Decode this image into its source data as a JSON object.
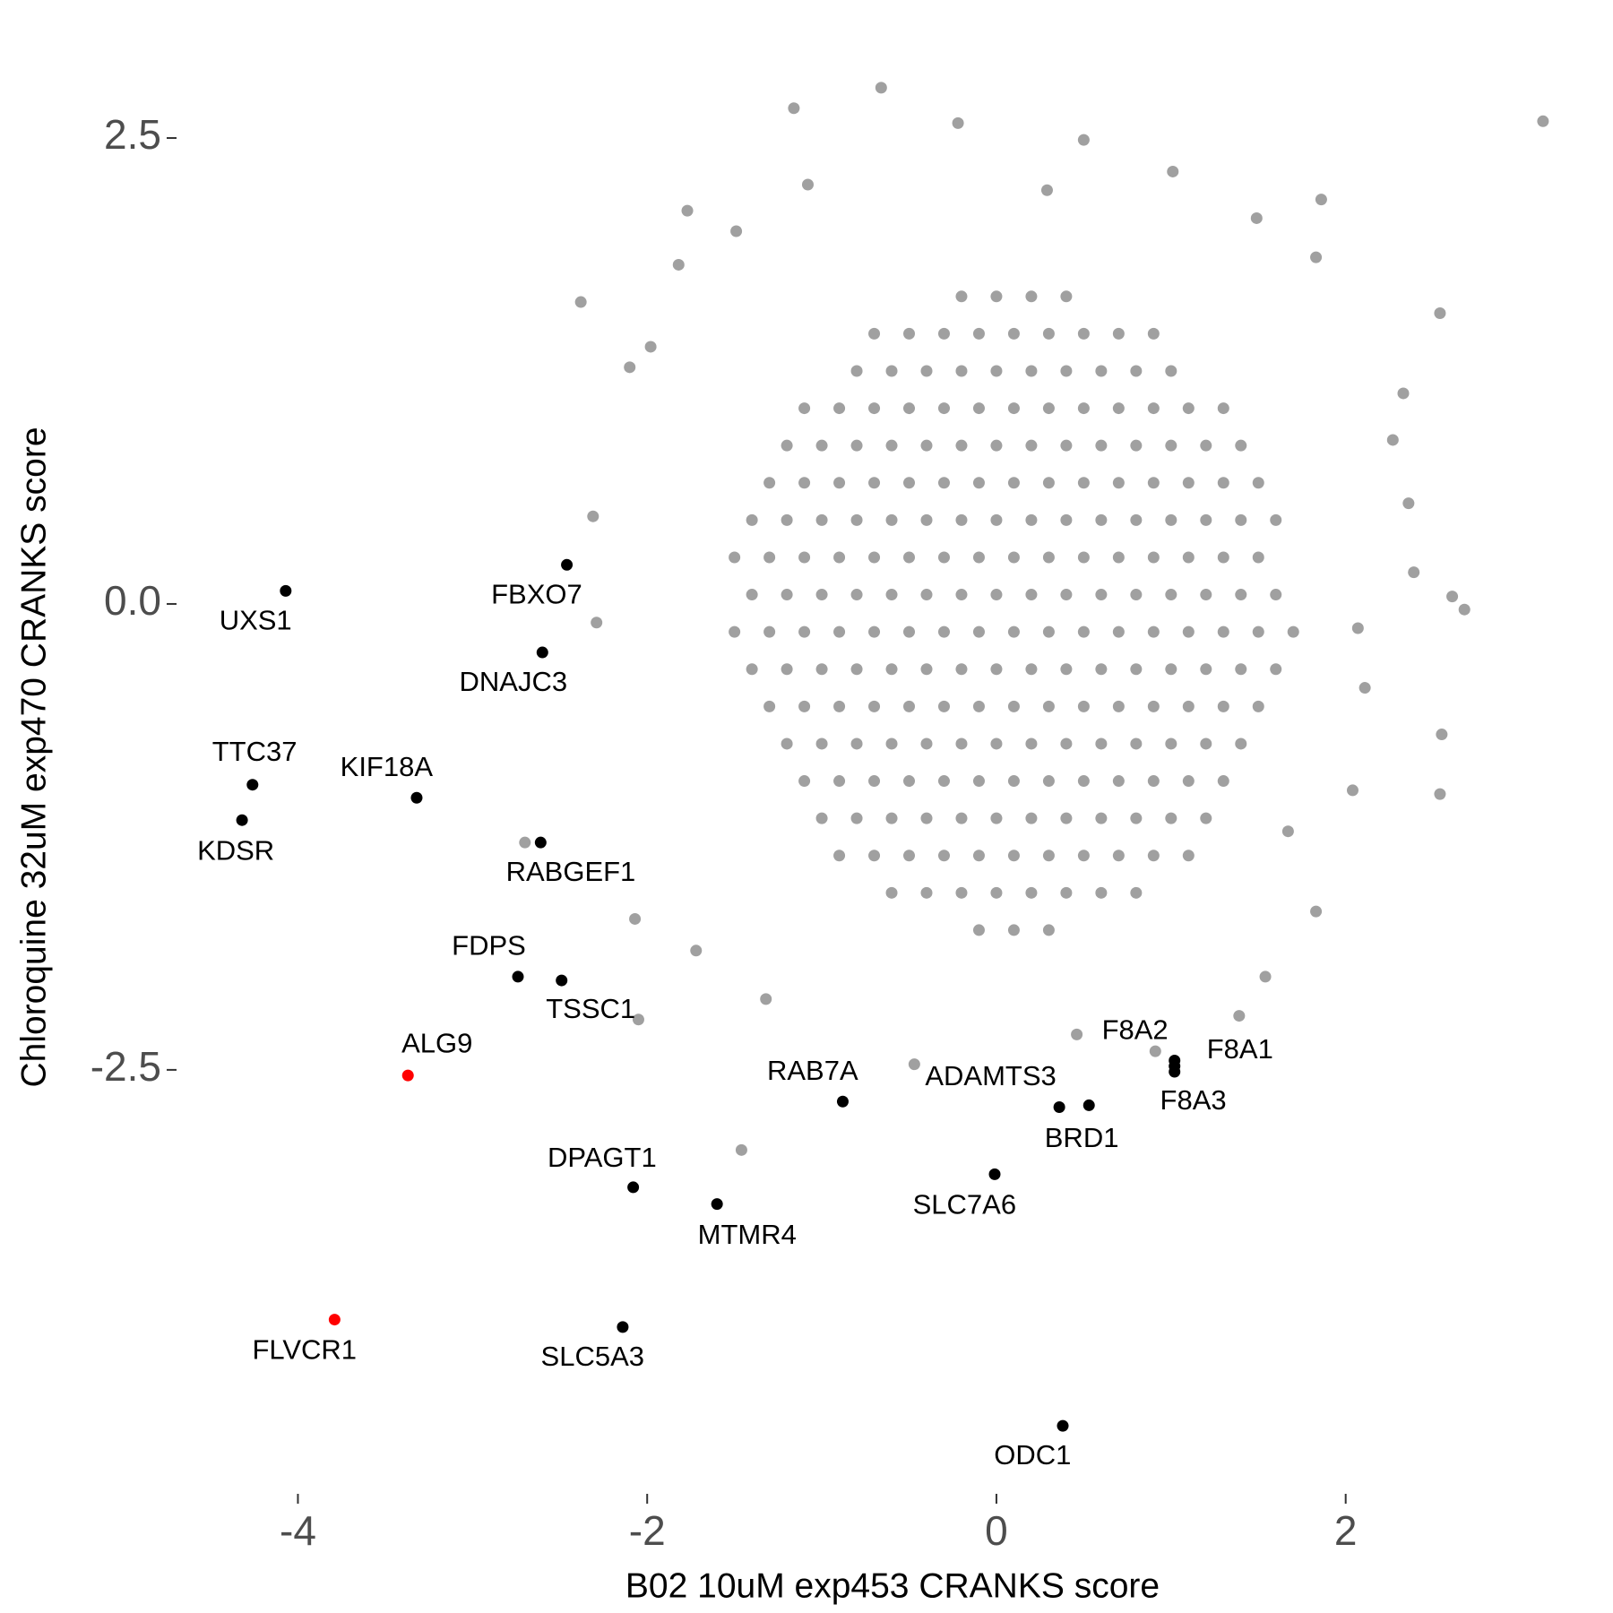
{
  "chart_data": {
    "type": "scatter",
    "xlabel": "B02 10uM exp453 CRANKS score",
    "ylabel": "Chloroquine 32uM exp470 CRANKS score",
    "xlim": [
      -4.69,
      3.5
    ],
    "ylim": [
      -4.77,
      3.13
    ],
    "xticks": [
      -4,
      -2,
      0,
      2
    ],
    "yticks": [
      -2.5,
      {
        "value": 0,
        "label": "0.0"
      },
      2.5
    ],
    "background": {
      "color": "#a0a0a0",
      "points": [
        [
          3.13,
          2.59
        ],
        [
          -0.66,
          2.77
        ],
        [
          -1.16,
          2.66
        ],
        [
          2.54,
          1.56
        ],
        [
          -2.38,
          1.62
        ],
        [
          -1.77,
          2.11
        ],
        [
          1.86,
          2.17
        ],
        [
          2.33,
          1.13
        ],
        [
          2.68,
          -0.03
        ],
        [
          2.61,
          0.04
        ],
        [
          2.55,
          -0.7
        ],
        [
          2.54,
          -1.02
        ],
        [
          2.04,
          -1.0
        ],
        [
          1.83,
          -1.65
        ],
        [
          1.39,
          -2.21
        ],
        [
          1.54,
          -2.0
        ],
        [
          -1.46,
          -2.93
        ],
        [
          -2.05,
          -2.23
        ],
        [
          -2.07,
          -1.69
        ],
        [
          -2.7,
          -1.28
        ],
        [
          -2.29,
          -0.1
        ],
        [
          -2.31,
          0.47
        ],
        [
          -2.1,
          1.27
        ],
        [
          -1.98,
          1.38
        ],
        [
          1.01,
          2.32
        ],
        [
          -0.22,
          2.58
        ],
        [
          0.5,
          2.49
        ],
        [
          2.39,
          0.17
        ],
        [
          2.36,
          0.54
        ],
        [
          2.27,
          0.88
        ],
        [
          -1.32,
          -2.12
        ],
        [
          -1.72,
          -1.86
        ],
        [
          -0.47,
          -2.47
        ],
        [
          0.46,
          -2.31
        ],
        [
          0.91,
          -2.4
        ],
        [
          1.67,
          -1.22
        ],
        [
          2.11,
          -0.45
        ],
        [
          2.07,
          -0.13
        ],
        [
          -1.82,
          1.82
        ],
        [
          -1.49,
          2.0
        ],
        [
          -1.08,
          2.25
        ],
        [
          0.29,
          2.22
        ],
        [
          1.49,
          2.07
        ],
        [
          1.83,
          1.86
        ],
        [
          -0.2,
          1.65
        ],
        [
          0.0,
          1.65
        ],
        [
          0.2,
          1.65
        ],
        [
          0.4,
          1.65
        ],
        [
          -0.7,
          1.45
        ],
        [
          -0.5,
          1.45
        ],
        [
          -0.3,
          1.45
        ],
        [
          -0.1,
          1.45
        ],
        [
          0.1,
          1.45
        ],
        [
          0.3,
          1.45
        ],
        [
          0.5,
          1.45
        ],
        [
          0.7,
          1.45
        ],
        [
          0.9,
          1.45
        ],
        [
          -0.8,
          1.25
        ],
        [
          -0.6,
          1.25
        ],
        [
          -0.4,
          1.25
        ],
        [
          -0.2,
          1.25
        ],
        [
          0.0,
          1.25
        ],
        [
          0.2,
          1.25
        ],
        [
          0.4,
          1.25
        ],
        [
          0.6,
          1.25
        ],
        [
          0.8,
          1.25
        ],
        [
          1.0,
          1.25
        ],
        [
          -1.1,
          1.05
        ],
        [
          -0.9,
          1.05
        ],
        [
          -0.7,
          1.05
        ],
        [
          -0.5,
          1.05
        ],
        [
          -0.3,
          1.05
        ],
        [
          -0.1,
          1.05
        ],
        [
          0.1,
          1.05
        ],
        [
          0.3,
          1.05
        ],
        [
          0.5,
          1.05
        ],
        [
          0.7,
          1.05
        ],
        [
          0.9,
          1.05
        ],
        [
          1.1,
          1.05
        ],
        [
          1.3,
          1.05
        ],
        [
          -1.2,
          0.85
        ],
        [
          -1.0,
          0.85
        ],
        [
          -0.8,
          0.85
        ],
        [
          -0.6,
          0.85
        ],
        [
          -0.4,
          0.85
        ],
        [
          -0.2,
          0.85
        ],
        [
          0.0,
          0.85
        ],
        [
          0.2,
          0.85
        ],
        [
          0.4,
          0.85
        ],
        [
          0.6,
          0.85
        ],
        [
          0.8,
          0.85
        ],
        [
          1.0,
          0.85
        ],
        [
          1.2,
          0.85
        ],
        [
          1.4,
          0.85
        ],
        [
          -1.3,
          0.65
        ],
        [
          -1.1,
          0.65
        ],
        [
          -0.9,
          0.65
        ],
        [
          -0.7,
          0.65
        ],
        [
          -0.5,
          0.65
        ],
        [
          -0.3,
          0.65
        ],
        [
          -0.1,
          0.65
        ],
        [
          0.1,
          0.65
        ],
        [
          0.3,
          0.65
        ],
        [
          0.5,
          0.65
        ],
        [
          0.7,
          0.65
        ],
        [
          0.9,
          0.65
        ],
        [
          1.1,
          0.65
        ],
        [
          1.3,
          0.65
        ],
        [
          1.5,
          0.65
        ],
        [
          -1.4,
          0.45
        ],
        [
          -1.2,
          0.45
        ],
        [
          -1.0,
          0.45
        ],
        [
          -0.8,
          0.45
        ],
        [
          -0.6,
          0.45
        ],
        [
          -0.4,
          0.45
        ],
        [
          -0.2,
          0.45
        ],
        [
          0.0,
          0.45
        ],
        [
          0.2,
          0.45
        ],
        [
          0.4,
          0.45
        ],
        [
          0.6,
          0.45
        ],
        [
          0.8,
          0.45
        ],
        [
          1.0,
          0.45
        ],
        [
          1.2,
          0.45
        ],
        [
          1.4,
          0.45
        ],
        [
          1.6,
          0.45
        ],
        [
          -1.5,
          0.25
        ],
        [
          -1.3,
          0.25
        ],
        [
          -1.1,
          0.25
        ],
        [
          -0.9,
          0.25
        ],
        [
          -0.7,
          0.25
        ],
        [
          -0.5,
          0.25
        ],
        [
          -0.3,
          0.25
        ],
        [
          -0.1,
          0.25
        ],
        [
          0.1,
          0.25
        ],
        [
          0.3,
          0.25
        ],
        [
          0.5,
          0.25
        ],
        [
          0.7,
          0.25
        ],
        [
          0.9,
          0.25
        ],
        [
          1.1,
          0.25
        ],
        [
          1.3,
          0.25
        ],
        [
          1.5,
          0.25
        ],
        [
          -1.4,
          0.05
        ],
        [
          -1.2,
          0.05
        ],
        [
          -1.0,
          0.05
        ],
        [
          -0.8,
          0.05
        ],
        [
          -0.6,
          0.05
        ],
        [
          -0.4,
          0.05
        ],
        [
          -0.2,
          0.05
        ],
        [
          0.0,
          0.05
        ],
        [
          0.2,
          0.05
        ],
        [
          0.4,
          0.05
        ],
        [
          0.6,
          0.05
        ],
        [
          0.8,
          0.05
        ],
        [
          1.0,
          0.05
        ],
        [
          1.2,
          0.05
        ],
        [
          1.4,
          0.05
        ],
        [
          1.6,
          0.05
        ],
        [
          -1.5,
          -0.15
        ],
        [
          -1.3,
          -0.15
        ],
        [
          -1.1,
          -0.15
        ],
        [
          -0.9,
          -0.15
        ],
        [
          -0.7,
          -0.15
        ],
        [
          -0.5,
          -0.15
        ],
        [
          -0.3,
          -0.15
        ],
        [
          -0.1,
          -0.15
        ],
        [
          0.1,
          -0.15
        ],
        [
          0.3,
          -0.15
        ],
        [
          0.5,
          -0.15
        ],
        [
          0.7,
          -0.15
        ],
        [
          0.9,
          -0.15
        ],
        [
          1.1,
          -0.15
        ],
        [
          1.3,
          -0.15
        ],
        [
          1.5,
          -0.15
        ],
        [
          1.7,
          -0.15
        ],
        [
          -1.4,
          -0.35
        ],
        [
          -1.2,
          -0.35
        ],
        [
          -1.0,
          -0.35
        ],
        [
          -0.8,
          -0.35
        ],
        [
          -0.6,
          -0.35
        ],
        [
          -0.4,
          -0.35
        ],
        [
          -0.2,
          -0.35
        ],
        [
          0.0,
          -0.35
        ],
        [
          0.2,
          -0.35
        ],
        [
          0.4,
          -0.35
        ],
        [
          0.6,
          -0.35
        ],
        [
          0.8,
          -0.35
        ],
        [
          1.0,
          -0.35
        ],
        [
          1.2,
          -0.35
        ],
        [
          1.4,
          -0.35
        ],
        [
          1.6,
          -0.35
        ],
        [
          -1.3,
          -0.55
        ],
        [
          -1.1,
          -0.55
        ],
        [
          -0.9,
          -0.55
        ],
        [
          -0.7,
          -0.55
        ],
        [
          -0.5,
          -0.55
        ],
        [
          -0.3,
          -0.55
        ],
        [
          -0.1,
          -0.55
        ],
        [
          0.1,
          -0.55
        ],
        [
          0.3,
          -0.55
        ],
        [
          0.5,
          -0.55
        ],
        [
          0.7,
          -0.55
        ],
        [
          0.9,
          -0.55
        ],
        [
          1.1,
          -0.55
        ],
        [
          1.3,
          -0.55
        ],
        [
          1.5,
          -0.55
        ],
        [
          -1.2,
          -0.75
        ],
        [
          -1.0,
          -0.75
        ],
        [
          -0.8,
          -0.75
        ],
        [
          -0.6,
          -0.75
        ],
        [
          -0.4,
          -0.75
        ],
        [
          -0.2,
          -0.75
        ],
        [
          0.0,
          -0.75
        ],
        [
          0.2,
          -0.75
        ],
        [
          0.4,
          -0.75
        ],
        [
          0.6,
          -0.75
        ],
        [
          0.8,
          -0.75
        ],
        [
          1.0,
          -0.75
        ],
        [
          1.2,
          -0.75
        ],
        [
          1.4,
          -0.75
        ],
        [
          -1.1,
          -0.95
        ],
        [
          -0.9,
          -0.95
        ],
        [
          -0.7,
          -0.95
        ],
        [
          -0.5,
          -0.95
        ],
        [
          -0.3,
          -0.95
        ],
        [
          -0.1,
          -0.95
        ],
        [
          0.1,
          -0.95
        ],
        [
          0.3,
          -0.95
        ],
        [
          0.5,
          -0.95
        ],
        [
          0.7,
          -0.95
        ],
        [
          0.9,
          -0.95
        ],
        [
          1.1,
          -0.95
        ],
        [
          1.3,
          -0.95
        ],
        [
          -1.0,
          -1.15
        ],
        [
          -0.8,
          -1.15
        ],
        [
          -0.6,
          -1.15
        ],
        [
          -0.4,
          -1.15
        ],
        [
          -0.2,
          -1.15
        ],
        [
          0.0,
          -1.15
        ],
        [
          0.2,
          -1.15
        ],
        [
          0.4,
          -1.15
        ],
        [
          0.6,
          -1.15
        ],
        [
          0.8,
          -1.15
        ],
        [
          1.0,
          -1.15
        ],
        [
          1.2,
          -1.15
        ],
        [
          -0.9,
          -1.35
        ],
        [
          -0.7,
          -1.35
        ],
        [
          -0.5,
          -1.35
        ],
        [
          -0.3,
          -1.35
        ],
        [
          -0.1,
          -1.35
        ],
        [
          0.1,
          -1.35
        ],
        [
          0.3,
          -1.35
        ],
        [
          0.5,
          -1.35
        ],
        [
          0.7,
          -1.35
        ],
        [
          0.9,
          -1.35
        ],
        [
          1.1,
          -1.35
        ],
        [
          -0.6,
          -1.55
        ],
        [
          -0.4,
          -1.55
        ],
        [
          -0.2,
          -1.55
        ],
        [
          0.0,
          -1.55
        ],
        [
          0.2,
          -1.55
        ],
        [
          0.4,
          -1.55
        ],
        [
          0.6,
          -1.55
        ],
        [
          0.8,
          -1.55
        ],
        [
          -0.1,
          -1.75
        ],
        [
          0.1,
          -1.75
        ],
        [
          0.3,
          -1.75
        ]
      ]
    },
    "labeled": {
      "labels": [
        "UXS1",
        "FBXO7",
        "DNAJC3",
        "TTC37",
        "KDSR",
        "KIF18A",
        "RABGEF1",
        "FDPS",
        "TSSC1",
        "ALG9",
        "RAB7A",
        "ADAMTS3",
        "BRD1",
        "F8A1",
        "F8A2",
        "F8A3",
        "SLC7A6",
        "DPAGT1",
        "MTMR4",
        "FLVCR1",
        "SLC5A3",
        "ODC1"
      ],
      "x": [
        -4.07,
        -2.46,
        -2.6,
        -4.26,
        -4.32,
        -3.32,
        -2.61,
        -2.74,
        -2.49,
        -3.37,
        -0.88,
        0.36,
        0.53,
        1.02,
        1.02,
        1.02,
        -0.01,
        -2.08,
        -1.6,
        -3.79,
        -2.14,
        0.38
      ],
      "y": [
        0.07,
        0.21,
        -0.26,
        -0.97,
        -1.16,
        -1.04,
        -1.28,
        -2.0,
        -2.02,
        -2.53,
        -2.67,
        -2.7,
        -2.69,
        -2.45,
        -2.48,
        -2.51,
        -3.06,
        -3.13,
        -3.22,
        -3.84,
        -3.88,
        -4.41
      ],
      "colors": [
        "#000000",
        "#000000",
        "#000000",
        "#000000",
        "#000000",
        "#000000",
        "#000000",
        "#000000",
        "#000000",
        "#ff0000",
        "#000000",
        "#000000",
        "#000000",
        "#000000",
        "#000000",
        "#000000",
        "#000000",
        "#000000",
        "#000000",
        "#ff0000",
        "#000000",
        "#000000"
      ]
    }
  }
}
